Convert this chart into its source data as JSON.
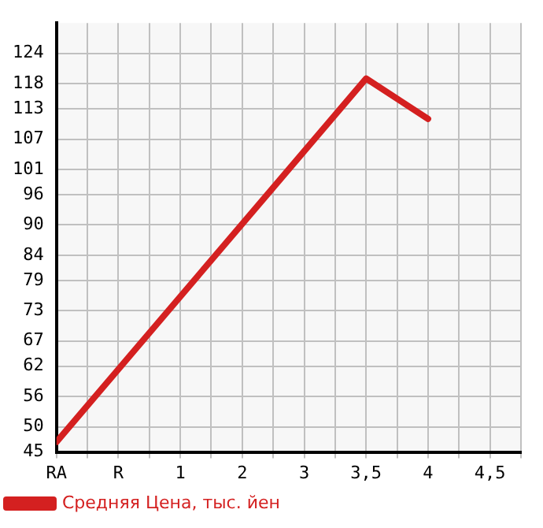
{
  "chart_data": {
    "type": "line",
    "categories": [
      "RA",
      "R",
      "1",
      "2",
      "3",
      "3,5",
      "4",
      "4,5"
    ],
    "series": [
      {
        "name": "Средняя Цена, тыс. йен",
        "color": "#d42020",
        "values": [
          47,
          null,
          null,
          null,
          null,
          119,
          111,
          null
        ]
      }
    ],
    "ylim": [
      45,
      130
    ],
    "yticks": [
      45,
      50,
      56,
      62,
      67,
      73,
      79,
      84,
      90,
      96,
      101,
      107,
      113,
      118,
      124
    ],
    "grid": true,
    "legend": "bottom left",
    "marker": "none",
    "line_style": "solid"
  }
}
